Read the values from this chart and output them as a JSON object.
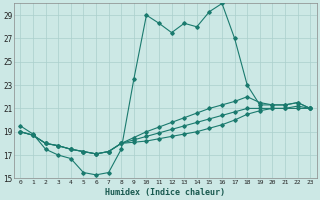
{
  "xlabel": "Humidex (Indice chaleur)",
  "bg_color": "#cce8e5",
  "grid_color": "#aacfcc",
  "line_color": "#1a7a6e",
  "xlim": [
    -0.5,
    23.5
  ],
  "ylim": [
    15,
    30
  ],
  "yticks": [
    15,
    17,
    19,
    21,
    23,
    25,
    27,
    29
  ],
  "xticks": [
    0,
    1,
    2,
    3,
    4,
    5,
    6,
    7,
    8,
    9,
    10,
    11,
    12,
    13,
    14,
    15,
    16,
    17,
    18,
    19,
    20,
    21,
    22,
    23
  ],
  "line1_x": [
    0,
    1,
    2,
    3,
    4,
    5,
    6,
    7,
    8,
    9,
    10,
    11,
    12,
    13,
    14,
    15,
    16,
    17,
    18,
    19,
    20,
    21,
    22,
    23
  ],
  "line1_y": [
    19.5,
    18.8,
    17.5,
    17.0,
    16.7,
    15.5,
    15.3,
    15.5,
    17.5,
    23.5,
    29.0,
    28.3,
    27.5,
    28.3,
    28.0,
    29.3,
    30.0,
    27.0,
    23.0,
    21.3,
    21.3,
    21.3,
    21.5,
    21.0
  ],
  "line2_x": [
    0,
    1,
    2,
    3,
    4,
    5,
    6,
    7,
    8,
    9,
    10,
    11,
    12,
    13,
    14,
    15,
    16,
    17,
    18,
    19,
    20,
    21,
    22,
    23
  ],
  "line2_y": [
    19.0,
    18.7,
    18.0,
    17.8,
    17.5,
    17.3,
    17.1,
    17.3,
    18.0,
    18.5,
    19.0,
    19.4,
    19.8,
    20.2,
    20.6,
    21.0,
    21.3,
    21.6,
    22.0,
    21.5,
    21.3,
    21.3,
    21.5,
    21.0
  ],
  "line3_x": [
    0,
    1,
    2,
    3,
    4,
    5,
    6,
    7,
    8,
    9,
    10,
    11,
    12,
    13,
    14,
    15,
    16,
    17,
    18,
    19,
    20,
    21,
    22,
    23
  ],
  "line3_y": [
    19.0,
    18.7,
    18.0,
    17.8,
    17.5,
    17.3,
    17.1,
    17.3,
    18.0,
    18.3,
    18.6,
    18.9,
    19.2,
    19.5,
    19.8,
    20.1,
    20.4,
    20.7,
    21.0,
    21.0,
    21.0,
    21.0,
    21.2,
    21.0
  ],
  "line4_x": [
    0,
    1,
    2,
    3,
    4,
    5,
    6,
    7,
    8,
    9,
    10,
    11,
    12,
    13,
    14,
    15,
    16,
    17,
    18,
    19,
    20,
    21,
    22,
    23
  ],
  "line4_y": [
    19.0,
    18.7,
    18.0,
    17.8,
    17.5,
    17.3,
    17.1,
    17.3,
    18.0,
    18.1,
    18.2,
    18.4,
    18.6,
    18.8,
    19.0,
    19.3,
    19.6,
    20.0,
    20.5,
    20.8,
    21.0,
    21.0,
    21.0,
    21.0
  ]
}
